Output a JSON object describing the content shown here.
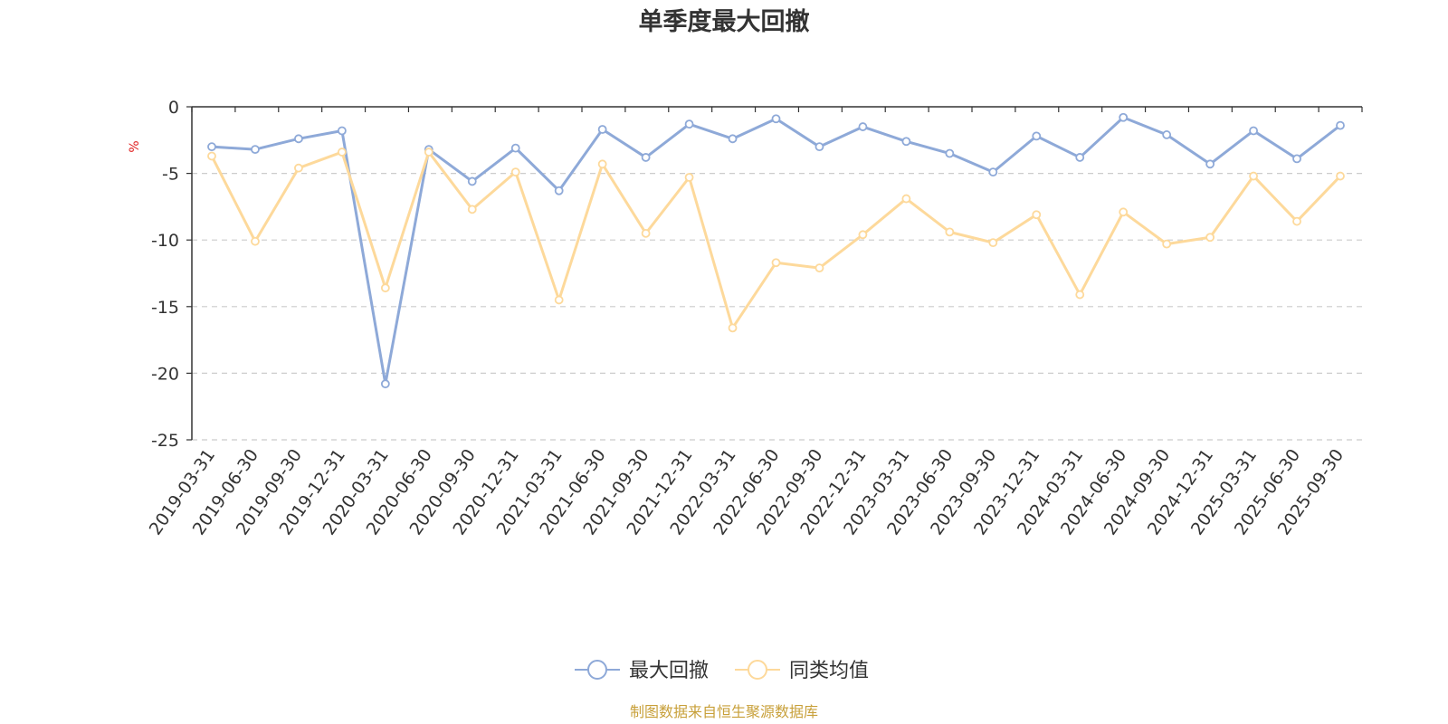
{
  "chart_data": {
    "type": "line",
    "title": "单季度最大回撤",
    "ylabel": "%",
    "ylim": [
      -25,
      0
    ],
    "yticks": [
      0,
      -5,
      -10,
      -15,
      -20,
      -25
    ],
    "grid": "horizontal-dashed",
    "legend_position": "bottom-center",
    "categories": [
      "2019-03-31",
      "2019-06-30",
      "2019-09-30",
      "2019-12-31",
      "2020-03-31",
      "2020-06-30",
      "2020-09-30",
      "2020-12-31",
      "2021-03-31",
      "2021-06-30",
      "2021-09-30",
      "2021-12-31",
      "2022-03-31",
      "2022-06-30",
      "2022-09-30",
      "2022-12-31",
      "2023-03-31",
      "2023-06-30",
      "2023-09-30",
      "2023-12-31",
      "2024-03-31",
      "2024-06-30",
      "2024-09-30",
      "2024-12-31",
      "2025-03-31",
      "2025-06-30",
      "2025-09-30"
    ],
    "series": [
      {
        "name": "最大回撤",
        "color": "#8ea9d8",
        "values": [
          -3.0,
          -3.2,
          -2.4,
          -1.8,
          -20.8,
          -3.2,
          -5.6,
          -3.1,
          -6.3,
          -1.7,
          -3.8,
          -1.3,
          -2.4,
          -0.9,
          -3.0,
          -1.5,
          -2.6,
          -3.5,
          -4.9,
          -2.2,
          -3.8,
          -0.8,
          -2.1,
          -4.3,
          -1.8,
          -3.9,
          -1.4
        ]
      },
      {
        "name": "同类均值",
        "color": "#fdd99b",
        "values": [
          -3.7,
          -10.1,
          -4.6,
          -3.4,
          -13.6,
          -3.4,
          -7.7,
          -4.9,
          -14.5,
          -4.3,
          -9.5,
          -5.3,
          -16.6,
          -11.7,
          -12.1,
          -9.6,
          -6.9,
          -9.4,
          -10.2,
          -8.1,
          -14.1,
          -7.9,
          -10.3,
          -9.8,
          -5.2,
          -8.6,
          -5.2
        ]
      }
    ]
  },
  "source_note": "制图数据来自恒生聚源数据库"
}
